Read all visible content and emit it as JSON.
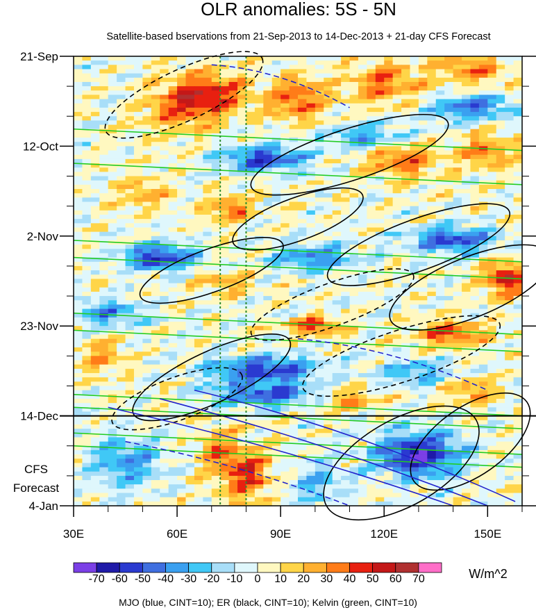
{
  "chart_data": {
    "type": "heatmap",
    "title": "OLR anomalies: 5S - 5N",
    "subtitle": "Satellite-based bservations from 21-Sep-2013 to 14-Dec-2013 + 21-day CFS Forecast",
    "x_axis": {
      "range": [
        30,
        160
      ],
      "ticks": [
        30,
        60,
        90,
        120,
        150
      ],
      "tick_labels": [
        "30E",
        "60E",
        "90E",
        "120E",
        "150E"
      ]
    },
    "y_axis": {
      "range_days": [
        0,
        105
      ],
      "ticks": [
        0,
        21,
        42,
        63,
        84,
        105
      ],
      "tick_labels": [
        "21-Sep",
        "12-Oct",
        "2-Nov",
        "23-Nov",
        "14-Dec",
        "4-Jan"
      ],
      "observation_end_day": 84
    },
    "forecast_label": [
      "CFS",
      "Forecast"
    ],
    "reference_lines_lon": [
      72.5,
      80
    ],
    "colorbar": {
      "levels": [
        -70,
        -60,
        -50,
        -40,
        -30,
        -20,
        -10,
        0,
        10,
        20,
        30,
        40,
        50,
        60,
        70
      ],
      "labels": [
        "-70",
        "-60",
        "-50",
        "-40",
        "-30",
        "-20",
        "-10",
        "0",
        "10",
        "20",
        "30",
        "40",
        "50",
        "60",
        "70"
      ],
      "colors": [
        "#7b3fe6",
        "#1f1aa8",
        "#2a3ad0",
        "#3f6fe0",
        "#3aa0f0",
        "#40c8f6",
        "#a8def8",
        "#dff7fc",
        "#fff8c0",
        "#ffd548",
        "#ffb030",
        "#ff7c18",
        "#e82010",
        "#c41818",
        "#b03030",
        "#ff6ec8"
      ],
      "units": "W/m^2"
    },
    "footer": "MJO (blue, CINT=10); ER (black, CINT=10); Kelvin (green, CINT=10)",
    "series": {
      "mjo_color": "#2222cc",
      "er_color": "#000000",
      "kelvin_color": "#22cc22"
    },
    "anomaly_features": [
      {
        "lon": 70,
        "day": 9,
        "value": 45,
        "dlon": 10,
        "dday": 5
      },
      {
        "lon": 60,
        "day": 12,
        "value": 30,
        "dlon": 10,
        "dday": 6
      },
      {
        "lon": 95,
        "day": 10,
        "value": 40,
        "dlon": 9,
        "dday": 5
      },
      {
        "lon": 120,
        "day": 6,
        "value": 35,
        "dlon": 10,
        "dday": 5
      },
      {
        "lon": 145,
        "day": 3,
        "value": 30,
        "dlon": 10,
        "dday": 4
      },
      {
        "lon": 85,
        "day": 24,
        "value": -55,
        "dlon": 12,
        "dday": 3
      },
      {
        "lon": 115,
        "day": 19,
        "value": -35,
        "dlon": 12,
        "dday": 3
      },
      {
        "lon": 145,
        "day": 12,
        "value": -45,
        "dlon": 12,
        "dday": 3
      },
      {
        "lon": 150,
        "day": 22,
        "value": 35,
        "dlon": 8,
        "dday": 4
      },
      {
        "lon": 125,
        "day": 24,
        "value": 40,
        "dlon": 10,
        "dday": 4
      },
      {
        "lon": 75,
        "day": 36,
        "value": 40,
        "dlon": 6,
        "dday": 3
      },
      {
        "lon": 50,
        "day": 32,
        "value": 20,
        "dlon": 8,
        "dday": 4
      },
      {
        "lon": 55,
        "day": 47,
        "value": -60,
        "dlon": 10,
        "dday": 3
      },
      {
        "lon": 100,
        "day": 47,
        "value": -40,
        "dlon": 12,
        "dday": 3
      },
      {
        "lon": 140,
        "day": 43,
        "value": -55,
        "dlon": 12,
        "dday": 3
      },
      {
        "lon": 155,
        "day": 52,
        "value": 55,
        "dlon": 6,
        "dday": 4
      },
      {
        "lon": 75,
        "day": 53,
        "value": 25,
        "dlon": 8,
        "dday": 3
      },
      {
        "lon": 40,
        "day": 60,
        "value": -35,
        "dlon": 10,
        "dday": 3
      },
      {
        "lon": 100,
        "day": 63,
        "value": 45,
        "dlon": 8,
        "dday": 2
      },
      {
        "lon": 140,
        "day": 65,
        "value": 40,
        "dlon": 10,
        "dday": 3
      },
      {
        "lon": 85,
        "day": 73,
        "value": -55,
        "dlon": 15,
        "dday": 3
      },
      {
        "lon": 130,
        "day": 74,
        "value": -30,
        "dlon": 12,
        "dday": 3
      },
      {
        "lon": 85,
        "day": 79,
        "value": -50,
        "dlon": 15,
        "dday": 3
      },
      {
        "lon": 38,
        "day": 70,
        "value": 25,
        "dlon": 6,
        "dday": 4
      },
      {
        "lon": 110,
        "day": 80,
        "value": 25,
        "dlon": 10,
        "dday": 3
      },
      {
        "lon": 145,
        "day": 78,
        "value": 30,
        "dlon": 8,
        "dday": 3
      },
      {
        "lon": 80,
        "day": 98,
        "value": 45,
        "dlon": 8,
        "dday": 6
      },
      {
        "lon": 72,
        "day": 92,
        "value": 30,
        "dlon": 6,
        "dday": 5
      },
      {
        "lon": 130,
        "day": 93,
        "value": -70,
        "dlon": 12,
        "dday": 5
      },
      {
        "lon": 45,
        "day": 95,
        "value": -35,
        "dlon": 10,
        "dday": 6
      },
      {
        "lon": 100,
        "day": 100,
        "value": -25,
        "dlon": 10,
        "dday": 5
      }
    ]
  }
}
